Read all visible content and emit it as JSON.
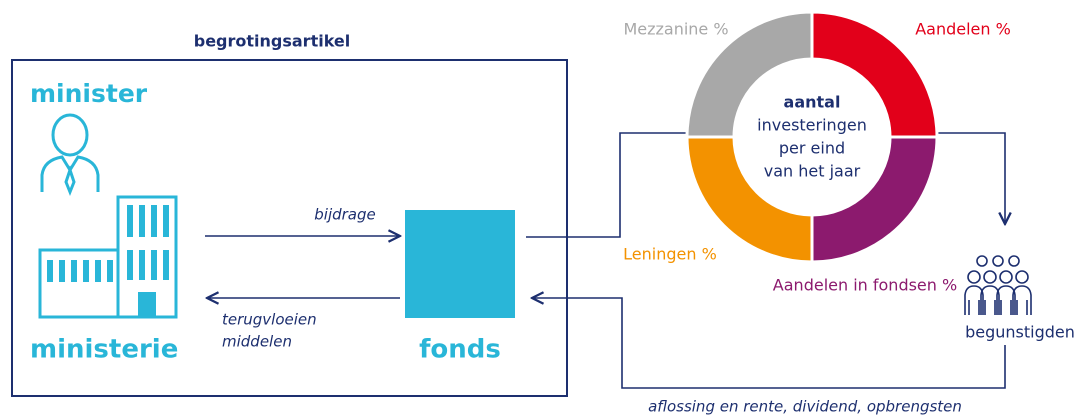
{
  "header": {
    "title": "begrotingsartikel"
  },
  "ministry": {
    "minister": "minister",
    "ministerie": "ministerie"
  },
  "flows": {
    "bijdrage": "bijdrage",
    "terugvloeien": [
      "terugvloeien",
      "middelen"
    ],
    "return": "aflossing en rente,  dividend, opbrengsten"
  },
  "fund": {
    "label": "fonds"
  },
  "donut": {
    "segments": [
      {
        "label": "Aandelen %"
      },
      {
        "label": "Aandelen in fondsen %"
      },
      {
        "label": "Leningen %"
      },
      {
        "label": "Mezzanine %"
      }
    ],
    "center": {
      "bold": "aantal",
      "lines": [
        "investeringen",
        "per eind",
        "van het jaar"
      ]
    }
  },
  "beneficiaries": {
    "label": "begunstigden"
  }
}
